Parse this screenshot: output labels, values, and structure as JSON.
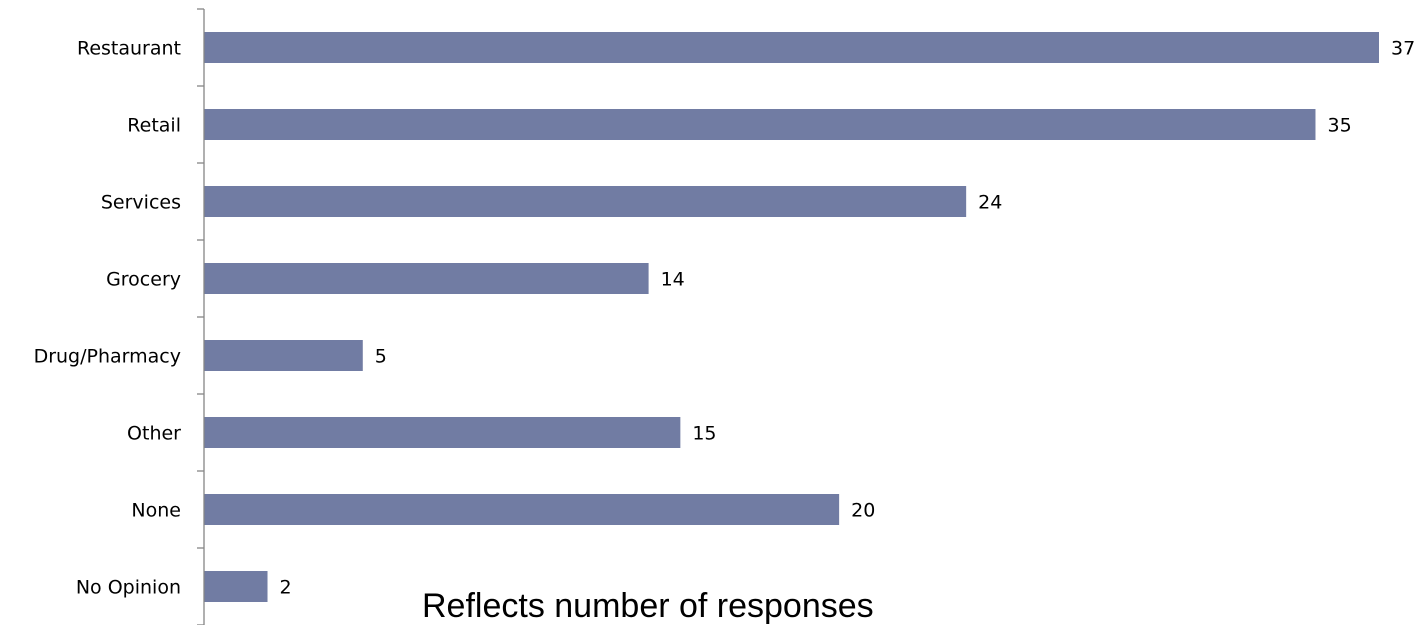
{
  "chart_data": {
    "type": "bar",
    "orientation": "horizontal",
    "categories": [
      "Restaurant",
      "Retail",
      "Services",
      "Grocery",
      "Drug/Pharmacy",
      "Other",
      "None",
      "No Opinion"
    ],
    "values": [
      37,
      35,
      24,
      14,
      5,
      15,
      20,
      2
    ],
    "data_labels": [
      "37",
      "35",
      "24",
      "14",
      "5",
      "15",
      "20",
      "2"
    ],
    "title": "",
    "xlabel": "",
    "ylabel": "",
    "xlim": [
      0,
      37
    ],
    "grid": false,
    "legend": "none",
    "annotation": "Reflects number of responses",
    "bar_color": "#717ca3"
  }
}
